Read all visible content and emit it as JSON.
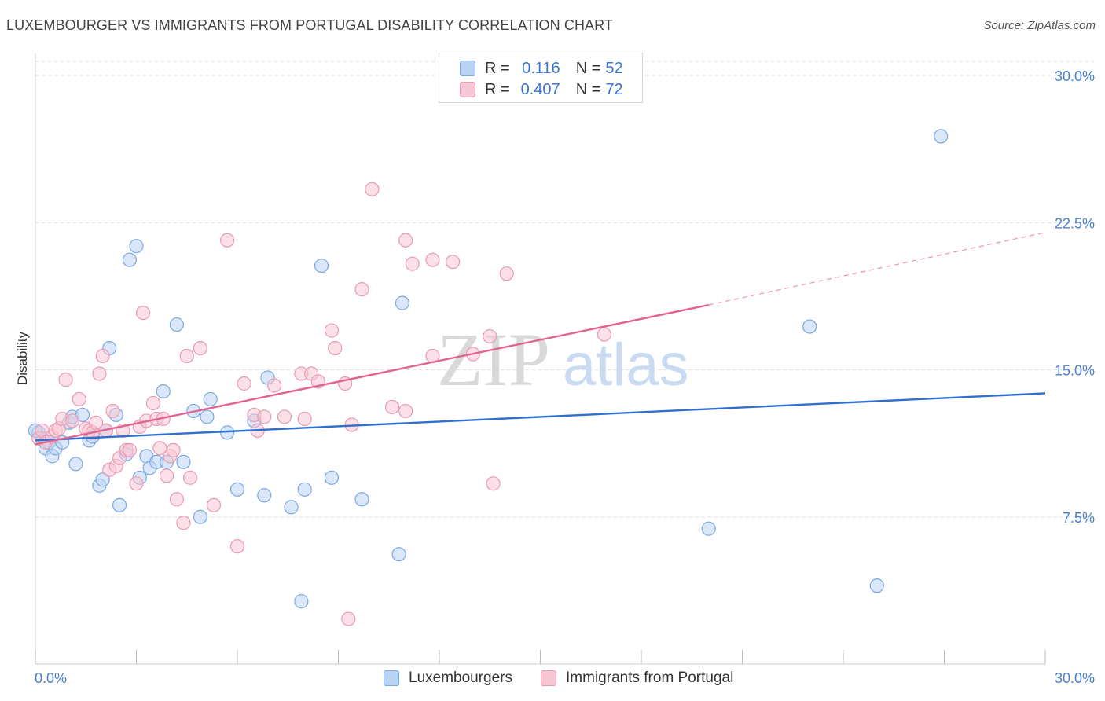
{
  "title": "LUXEMBOURGER VS IMMIGRANTS FROM PORTUGAL DISABILITY CORRELATION CHART",
  "source": "Source: ZipAtlas.com",
  "watermark": {
    "zip": "ZIP",
    "atlas": "atlas"
  },
  "colors": {
    "blue_fill": "#b9d3f4",
    "blue_stroke": "#7aa8e4",
    "blue_line": "#2f6fcf",
    "pink_fill": "#f7c6d5",
    "pink_stroke": "#e99ab2",
    "pink_line": "#e26390",
    "tick_text": "#4a7fcf",
    "grid": "#dddddd"
  },
  "legend": {
    "rows": [
      {
        "r_label": "R =",
        "r_value": "0.116",
        "n_label": "N =",
        "n_value": "52",
        "color": "blue"
      },
      {
        "r_label": "R =",
        "r_value": "0.407",
        "n_label": "N =",
        "n_value": "72",
        "color": "pink"
      }
    ]
  },
  "bottom_legend": [
    "Luxembourgers",
    "Immigrants from Portugal"
  ],
  "chart_data": {
    "type": "scatter",
    "title": "LUXEMBOURGER VS IMMIGRANTS FROM PORTUGAL DISABILITY CORRELATION CHART",
    "xlabel": "",
    "ylabel": "Disability",
    "xlim": [
      0,
      30
    ],
    "ylim": [
      0,
      30.5
    ],
    "x_tick_labels": [
      "0.0%",
      "30.0%"
    ],
    "y_ticks": [
      7.5,
      15.0,
      22.5,
      30.0
    ],
    "y_tick_labels": [
      "7.5%",
      "15.0%",
      "22.5%",
      "30.0%"
    ],
    "grid": "horizontal dashed",
    "legend_placement": "top-center",
    "series": [
      {
        "name": "Luxembourgers",
        "color": "blue",
        "r": 0.116,
        "n": 52,
        "trend": {
          "x": [
            0,
            30
          ],
          "y": [
            11.4,
            13.8
          ]
        },
        "points": [
          [
            0.1,
            11.8
          ],
          [
            0.2,
            11.5
          ],
          [
            0.3,
            11.0
          ],
          [
            0.4,
            11.3
          ],
          [
            0.5,
            10.6
          ],
          [
            0.6,
            11.0
          ],
          [
            0.8,
            11.3
          ],
          [
            1.0,
            12.3
          ],
          [
            1.1,
            12.6
          ],
          [
            1.2,
            10.2
          ],
          [
            1.4,
            12.7
          ],
          [
            1.6,
            11.4
          ],
          [
            1.7,
            11.6
          ],
          [
            1.9,
            9.1
          ],
          [
            2.0,
            9.4
          ],
          [
            2.1,
            11.9
          ],
          [
            2.2,
            16.1
          ],
          [
            2.4,
            12.7
          ],
          [
            2.5,
            8.1
          ],
          [
            2.7,
            10.7
          ],
          [
            2.8,
            20.6
          ],
          [
            3.0,
            21.3
          ],
          [
            3.1,
            9.5
          ],
          [
            3.3,
            10.6
          ],
          [
            3.4,
            10.0
          ],
          [
            3.6,
            10.3
          ],
          [
            3.8,
            13.9
          ],
          [
            3.9,
            10.3
          ],
          [
            4.2,
            17.3
          ],
          [
            4.4,
            10.3
          ],
          [
            4.7,
            12.9
          ],
          [
            4.9,
            7.5
          ],
          [
            5.1,
            12.6
          ],
          [
            5.2,
            13.5
          ],
          [
            5.7,
            11.8
          ],
          [
            6.0,
            8.9
          ],
          [
            6.5,
            12.4
          ],
          [
            6.8,
            8.6
          ],
          [
            6.9,
            14.6
          ],
          [
            7.6,
            8.0
          ],
          [
            7.9,
            3.2
          ],
          [
            8.0,
            8.9
          ],
          [
            8.5,
            20.3
          ],
          [
            8.8,
            9.5
          ],
          [
            9.7,
            8.4
          ],
          [
            10.8,
            5.6
          ],
          [
            10.9,
            18.4
          ],
          [
            20.0,
            6.9
          ],
          [
            23.0,
            17.2
          ],
          [
            25.0,
            4.0
          ],
          [
            26.9,
            26.9
          ],
          [
            0.0,
            11.9
          ]
        ]
      },
      {
        "name": "Immigrants from Portugal",
        "color": "pink",
        "r": 0.407,
        "n": 72,
        "trend": {
          "x": [
            0,
            20.0
          ],
          "y": [
            11.2,
            18.3
          ]
        },
        "trend_dashed": {
          "x": [
            20.0,
            30
          ],
          "y": [
            18.3,
            22.0
          ]
        },
        "points": [
          [
            0.1,
            11.5
          ],
          [
            0.2,
            11.9
          ],
          [
            0.3,
            11.3
          ],
          [
            0.5,
            11.6
          ],
          [
            0.6,
            11.9
          ],
          [
            0.7,
            12.0
          ],
          [
            0.8,
            12.5
          ],
          [
            0.9,
            14.5
          ],
          [
            1.1,
            12.4
          ],
          [
            1.3,
            13.5
          ],
          [
            1.5,
            12.0
          ],
          [
            1.6,
            11.9
          ],
          [
            1.7,
            11.8
          ],
          [
            1.8,
            12.3
          ],
          [
            1.9,
            14.8
          ],
          [
            2.0,
            15.7
          ],
          [
            2.1,
            11.9
          ],
          [
            2.2,
            9.9
          ],
          [
            2.3,
            12.9
          ],
          [
            2.4,
            10.1
          ],
          [
            2.5,
            10.5
          ],
          [
            2.6,
            11.9
          ],
          [
            2.7,
            10.9
          ],
          [
            2.8,
            10.9
          ],
          [
            3.0,
            9.2
          ],
          [
            3.1,
            12.1
          ],
          [
            3.2,
            17.9
          ],
          [
            3.3,
            12.4
          ],
          [
            3.5,
            13.3
          ],
          [
            3.6,
            12.5
          ],
          [
            3.7,
            11.0
          ],
          [
            3.8,
            12.5
          ],
          [
            3.9,
            9.6
          ],
          [
            4.0,
            10.6
          ],
          [
            4.1,
            10.9
          ],
          [
            4.2,
            8.4
          ],
          [
            4.4,
            7.2
          ],
          [
            4.5,
            15.7
          ],
          [
            4.6,
            9.5
          ],
          [
            4.9,
            16.1
          ],
          [
            5.3,
            8.1
          ],
          [
            5.7,
            21.6
          ],
          [
            6.0,
            6.0
          ],
          [
            6.2,
            14.3
          ],
          [
            6.5,
            12.7
          ],
          [
            6.6,
            11.9
          ],
          [
            6.8,
            12.6
          ],
          [
            7.1,
            14.2
          ],
          [
            7.4,
            12.6
          ],
          [
            7.9,
            14.8
          ],
          [
            8.0,
            12.5
          ],
          [
            8.2,
            14.8
          ],
          [
            8.4,
            14.4
          ],
          [
            8.8,
            17.0
          ],
          [
            8.9,
            16.1
          ],
          [
            9.2,
            14.3
          ],
          [
            9.3,
            2.3
          ],
          [
            9.4,
            12.2
          ],
          [
            9.7,
            19.1
          ],
          [
            10.0,
            24.2
          ],
          [
            10.6,
            13.1
          ],
          [
            11.0,
            21.6
          ],
          [
            11.0,
            12.9
          ],
          [
            11.2,
            20.4
          ],
          [
            11.8,
            15.7
          ],
          [
            11.8,
            20.6
          ],
          [
            12.4,
            20.5
          ],
          [
            13.0,
            15.8
          ],
          [
            13.5,
            16.7
          ],
          [
            13.6,
            9.2
          ],
          [
            14.0,
            19.9
          ],
          [
            16.9,
            16.8
          ]
        ]
      }
    ]
  }
}
